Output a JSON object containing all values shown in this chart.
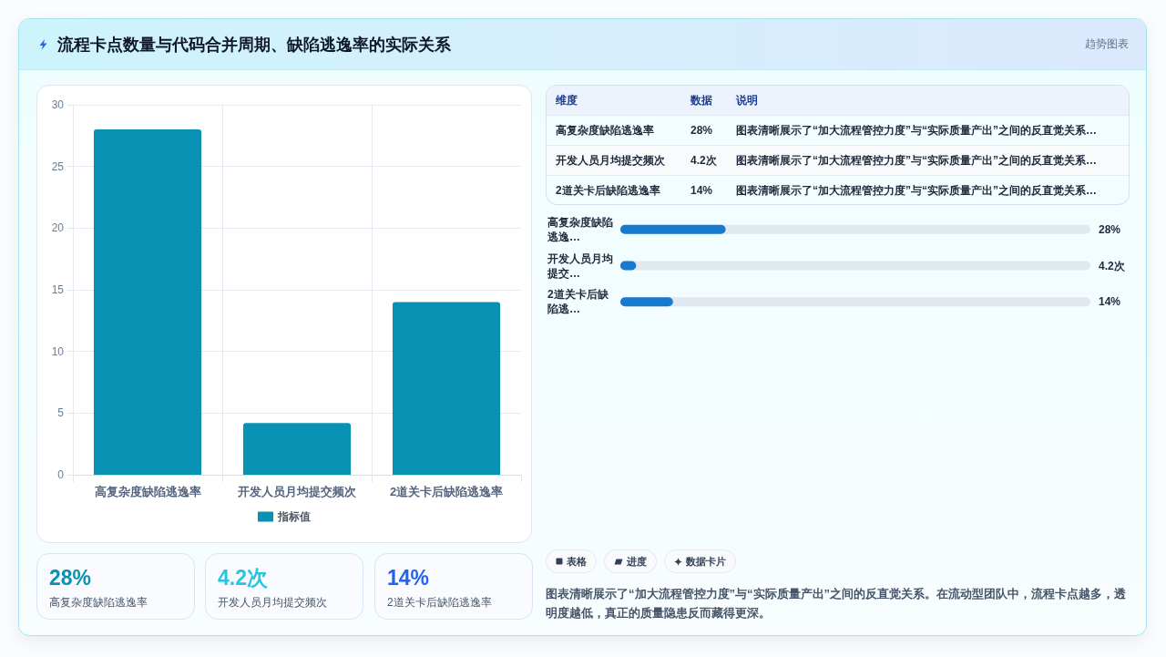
{
  "chart_data": [
    {
      "type": "bar",
      "title": "流程卡点数量与代码合并周期、缺陷逃逸率的实际关系",
      "categories": [
        "高复杂度缺陷逃逸率",
        "开发人员月均提交频次",
        "2道关卡后缺陷逃逸率"
      ],
      "series": [
        {
          "name": "指标值",
          "color": "#0891b2",
          "values": [
            28,
            4.2,
            14
          ]
        }
      ],
      "ylim": [
        0,
        30
      ],
      "yticks": [
        0,
        5,
        10,
        15,
        20,
        25,
        30
      ],
      "grid": true,
      "legend": "bottom"
    },
    {
      "type": "other",
      "subtitle": "趋势图表",
      "categories": [
        "高复杂度缺陷逃逸率",
        "开发人员月均提交频次",
        "2道关卡后缺陷逃逸率"
      ],
      "value_labels": [
        "28%",
        "4.2次",
        "14%"
      ],
      "annotations": [
        "维度",
        "数据",
        "说明",
        "图表清晰展示了“加大流程管控力度”与“实际质量产出”之间的反直觉关系…",
        "图表清晰展示了“加大流程管控力度”与“实际质量产出”之间的反直觉关系…",
        "图表清晰展示了“加大流程管控力度”与“实际质量产出”之间的反直觉关系…"
      ]
    },
    {
      "type": "bar",
      "orientation": "horizontal",
      "categories": [
        "高复杂度缺陷逃逸…",
        "开发人员月均提交…",
        "2道关卡后缺陷逃…"
      ],
      "values": [
        28,
        4.2,
        14
      ],
      "value_labels": [
        "28%",
        "4.2次",
        "14%"
      ],
      "color": "#167ace",
      "xlim": [
        0,
        125
      ],
      "tick_labels": "y"
    },
    {
      "type": "other",
      "categories": [
        "高复杂度缺陷逃逸率",
        "开发人员月均提交频次",
        "2道关卡后缺陷逃逸率"
      ],
      "value_labels": [
        "28%",
        "4.2次",
        "14%"
      ]
    },
    {
      "type": "other",
      "annotations": [
        "表格",
        "进度",
        "数据卡片",
        "图表清晰展示了“加大流程管控力度”与“实际质量产出”之间的反直觉关系。在流动型团队中，流程卡点越多，透明度越低，真正的质量隐患反而藏得更深。"
      ]
    }
  ]
}
